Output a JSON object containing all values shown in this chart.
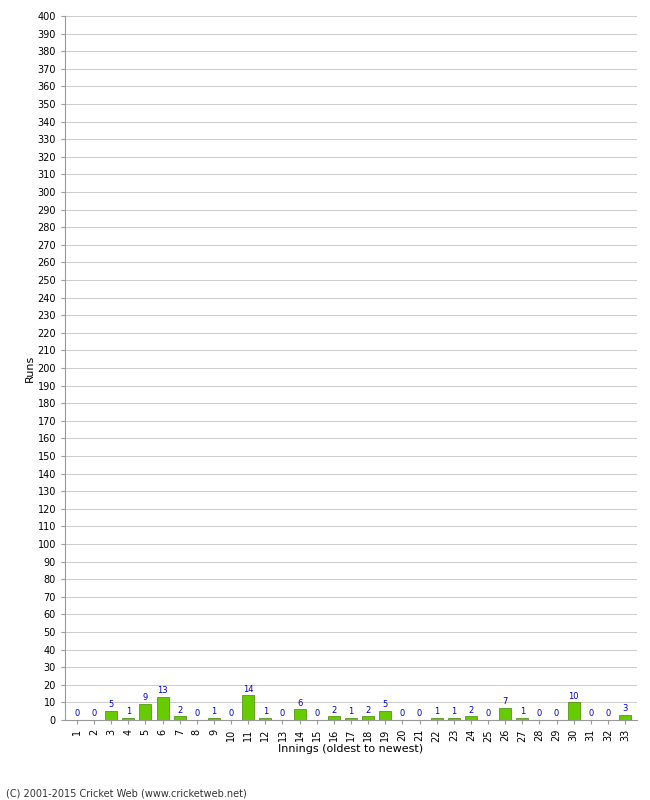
{
  "innings": [
    1,
    2,
    3,
    4,
    5,
    6,
    7,
    8,
    9,
    10,
    11,
    12,
    13,
    14,
    15,
    16,
    17,
    18,
    19,
    20,
    21,
    22,
    23,
    24,
    25,
    26,
    27,
    28,
    29,
    30,
    31,
    32,
    33
  ],
  "values": [
    0,
    0,
    5,
    1,
    9,
    13,
    2,
    0,
    1,
    0,
    14,
    1,
    0,
    6,
    0,
    2,
    1,
    2,
    5,
    0,
    0,
    1,
    1,
    2,
    0,
    7,
    1,
    0,
    0,
    10,
    0,
    0,
    3
  ],
  "bar_color": "#66cc00",
  "bar_edge_color": "#448800",
  "value_color_blue": "#0000cc",
  "xlabel": "Innings (oldest to newest)",
  "ylabel": "Runs",
  "ylim": [
    0,
    400
  ],
  "ytick_step": 10,
  "background_color": "#ffffff",
  "grid_color": "#cccccc",
  "footer": "(C) 2001-2015 Cricket Web (www.cricketweb.net)"
}
